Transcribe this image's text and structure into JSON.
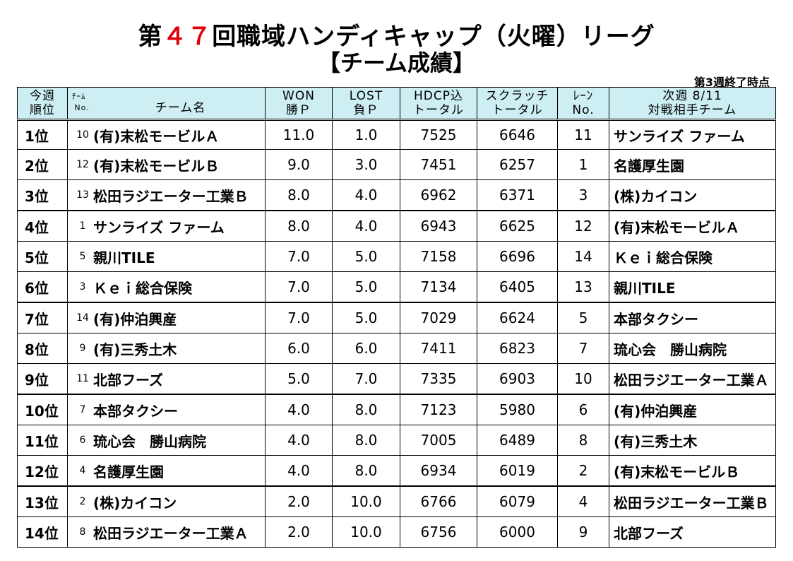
{
  "header": {
    "title_prefix": "第",
    "title_number": "４７",
    "title_suffix": "回職域ハンディキャップ（火曜）リーグ",
    "subtitle": "【チーム成績】",
    "as_of": "第3週終了時点"
  },
  "columns": {
    "rank_line1": "今週",
    "rank_line2": "順位",
    "team_no_line1": "ﾁｰﾑ",
    "team_no_line2": "No.",
    "team_name": "チーム名",
    "won_line1": "WON",
    "won_line2": "勝Ｐ",
    "lost_line1": "LOST",
    "lost_line2": "負Ｐ",
    "hdcp_line1": "HDCP込",
    "hdcp_line2": "トータル",
    "scratch_line1": "スクラッチ",
    "scratch_line2": "トータル",
    "lane_line1": "ﾚｰﾝ",
    "lane_line2": "No.",
    "next_line1": "次週 8/11",
    "next_line2": "対戦相手チーム"
  },
  "rows": [
    {
      "rank": "1位",
      "no": "10",
      "team": "(有)末松モービルＡ",
      "won": "11.0",
      "lost": "1.0",
      "hdcp": "7525",
      "scratch": "6646",
      "lane": "11",
      "opponent": "サンライズ ファーム"
    },
    {
      "rank": "2位",
      "no": "12",
      "team": "(有)末松モービルＢ",
      "won": "9.0",
      "lost": "3.0",
      "hdcp": "7451",
      "scratch": "6257",
      "lane": "1",
      "opponent": "名護厚生園"
    },
    {
      "rank": "3位",
      "no": "13",
      "team": "松田ラジエーター工業Ｂ",
      "won": "8.0",
      "lost": "4.0",
      "hdcp": "6962",
      "scratch": "6371",
      "lane": "3",
      "opponent": "(株)カイコン"
    },
    {
      "rank": "4位",
      "no": "1",
      "team": "サンライズ ファーム",
      "won": "8.0",
      "lost": "4.0",
      "hdcp": "6943",
      "scratch": "6625",
      "lane": "12",
      "opponent": "(有)末松モービルＡ"
    },
    {
      "rank": "5位",
      "no": "5",
      "team": "親川TILE",
      "won": "7.0",
      "lost": "5.0",
      "hdcp": "7158",
      "scratch": "6696",
      "lane": "14",
      "opponent": "Ｋｅｉ総合保険"
    },
    {
      "rank": "6位",
      "no": "3",
      "team": "Ｋｅｉ総合保険",
      "won": "7.0",
      "lost": "5.0",
      "hdcp": "7134",
      "scratch": "6405",
      "lane": "13",
      "opponent": "親川TILE"
    },
    {
      "rank": "7位",
      "no": "14",
      "team": "(有)仲泊興産",
      "won": "7.0",
      "lost": "5.0",
      "hdcp": "7029",
      "scratch": "6624",
      "lane": "5",
      "opponent": "本部タクシー"
    },
    {
      "rank": "8位",
      "no": "9",
      "team": "(有)三秀土木",
      "won": "6.0",
      "lost": "6.0",
      "hdcp": "7411",
      "scratch": "6823",
      "lane": "7",
      "opponent": "琉心会　勝山病院"
    },
    {
      "rank": "9位",
      "no": "11",
      "team": "北部フーズ",
      "won": "5.0",
      "lost": "7.0",
      "hdcp": "7335",
      "scratch": "6903",
      "lane": "10",
      "opponent": "松田ラジエーター工業Ａ"
    },
    {
      "rank": "10位",
      "no": "7",
      "team": "本部タクシー",
      "won": "4.0",
      "lost": "8.0",
      "hdcp": "7123",
      "scratch": "5980",
      "lane": "6",
      "opponent": "(有)仲泊興産"
    },
    {
      "rank": "11位",
      "no": "6",
      "team": "琉心会　勝山病院",
      "won": "4.0",
      "lost": "8.0",
      "hdcp": "7005",
      "scratch": "6489",
      "lane": "8",
      "opponent": "(有)三秀土木"
    },
    {
      "rank": "12位",
      "no": "4",
      "team": "名護厚生園",
      "won": "4.0",
      "lost": "8.0",
      "hdcp": "6934",
      "scratch": "6019",
      "lane": "2",
      "opponent": "(有)末松モービルＢ"
    },
    {
      "rank": "13位",
      "no": "2",
      "team": "(株)カイコン",
      "won": "2.0",
      "lost": "10.0",
      "hdcp": "6766",
      "scratch": "6079",
      "lane": "4",
      "opponent": "松田ラジエーター工業Ｂ"
    },
    {
      "rank": "14位",
      "no": "8",
      "team": "松田ラジエーター工業Ａ",
      "won": "2.0",
      "lost": "10.0",
      "hdcp": "6756",
      "scratch": "6000",
      "lane": "9",
      "opponent": "北部フーズ"
    }
  ],
  "colors": {
    "header_bg": "#cdeef3",
    "title_number": "#e0000b"
  }
}
